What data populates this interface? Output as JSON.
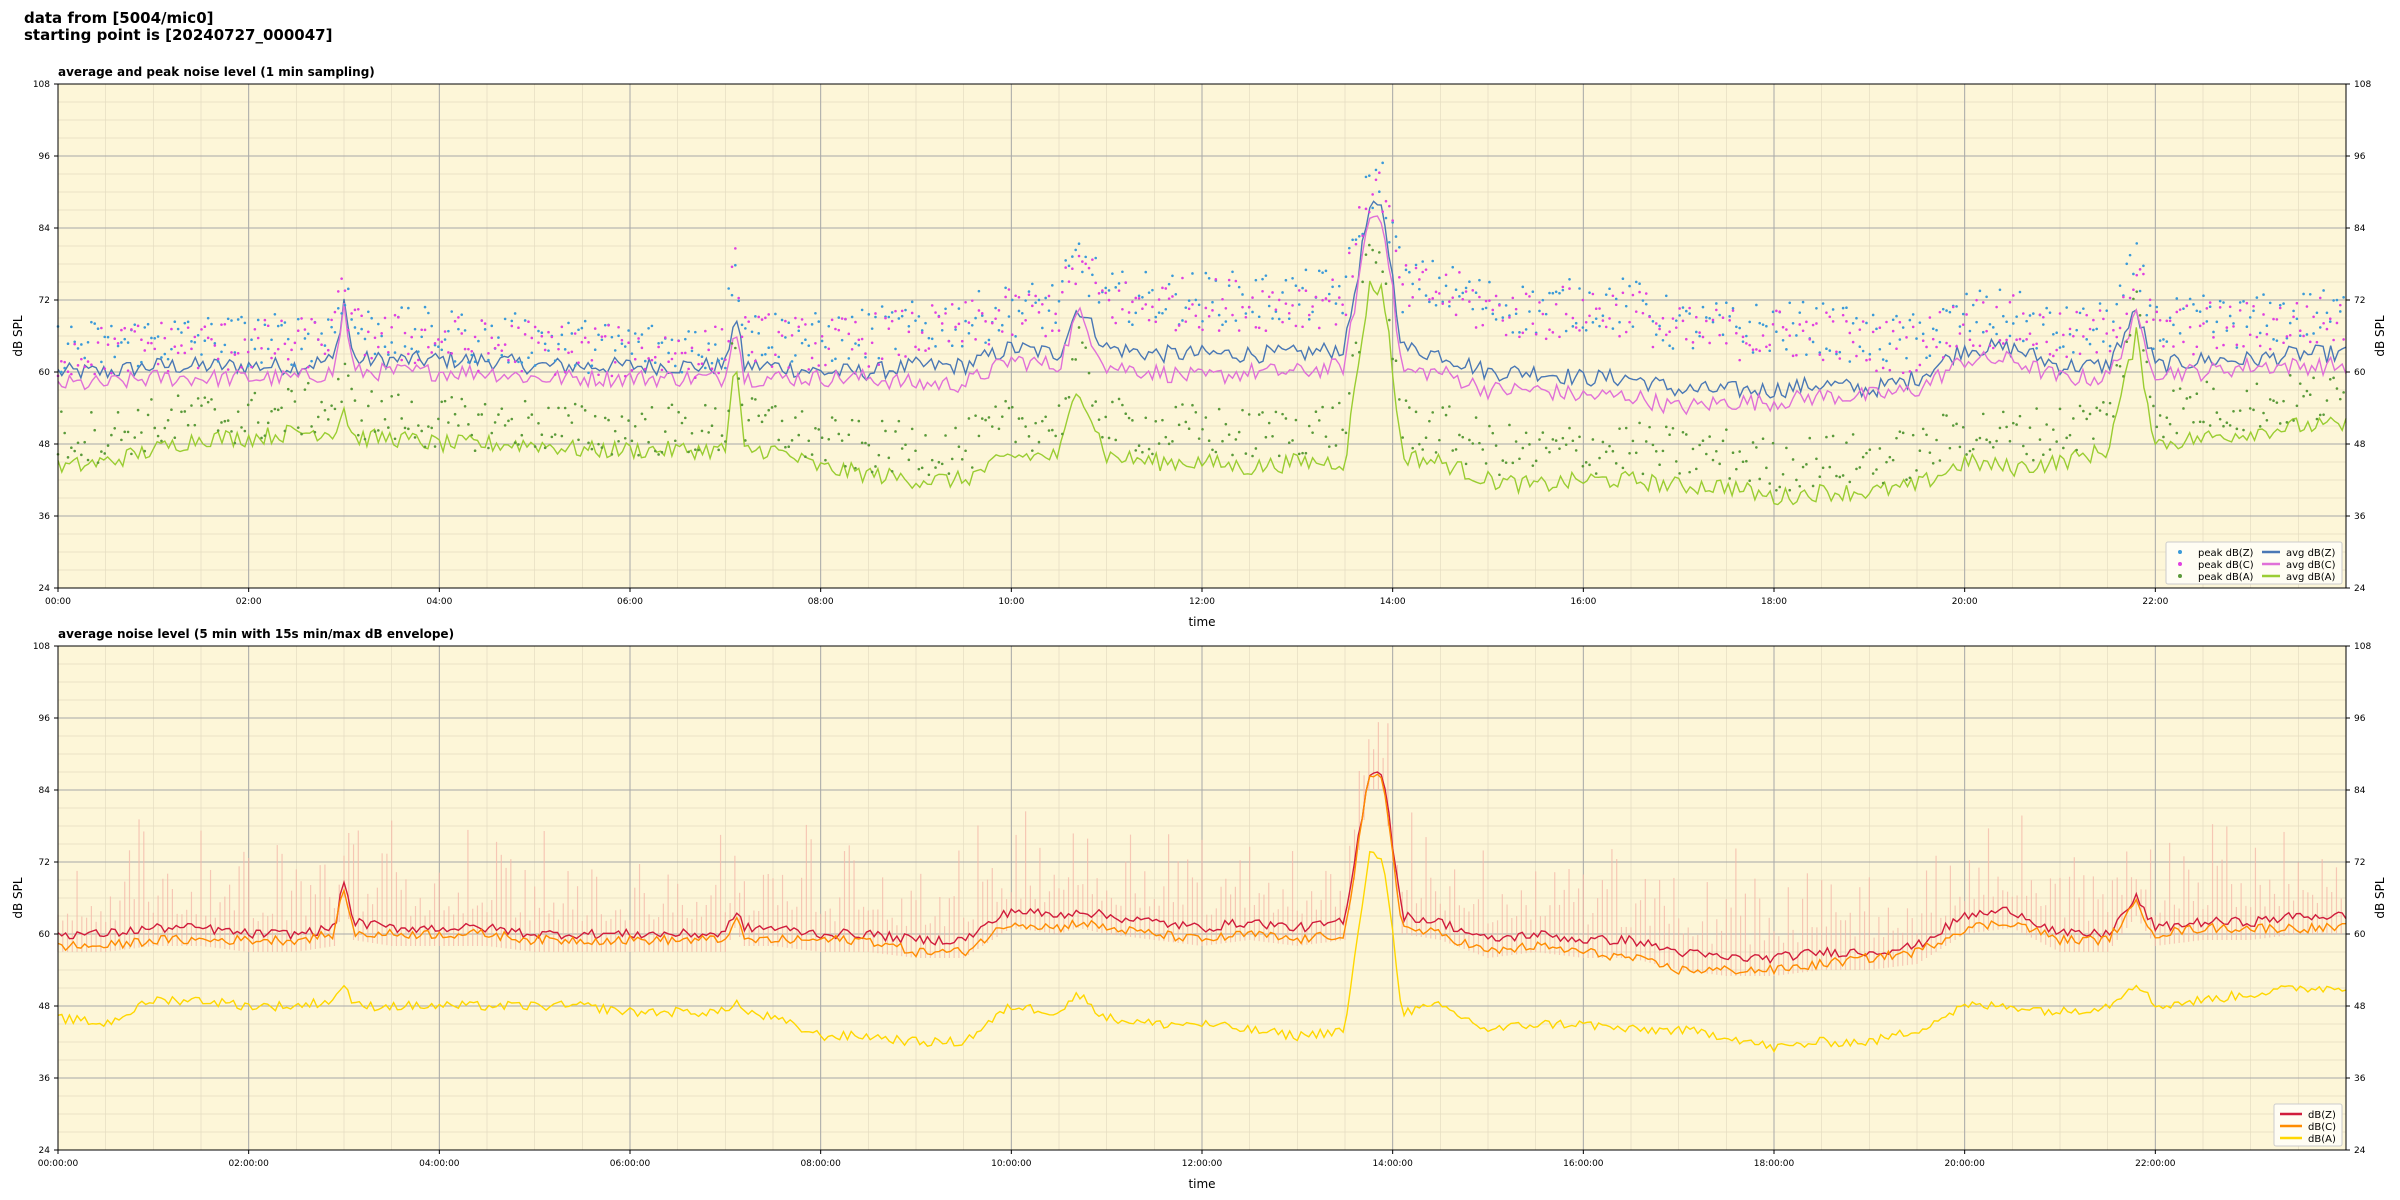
{
  "header": {
    "line1": "data from [5004/mic0]",
    "line2": "starting point is [20240727_000047]"
  },
  "colors": {
    "background": "#fdf6d8",
    "grid_major": "#a8a8a8",
    "grid_minor": "#e4dcc0",
    "avg_z": "#4a78b5",
    "avg_c": "#e070d8",
    "avg_a": "#9acd32",
    "peak_z": "#3a9ad9",
    "peak_c": "#e040e0",
    "peak_a": "#5a9a3a",
    "env_z": "#d01c3c",
    "env_c": "#ff8c00",
    "env_a": "#ffd700",
    "envelope_fill": "#f4b8a8"
  },
  "chart_data": [
    {
      "type": "line",
      "title": "average and peak noise level (1 min sampling)",
      "xlabel": "time",
      "ylabel": "dB SPL",
      "xlim": [
        0,
        24
      ],
      "ylim": [
        24,
        108
      ],
      "xticks": [
        "00:00",
        "02:00",
        "04:00",
        "06:00",
        "08:00",
        "10:00",
        "12:00",
        "14:00",
        "16:00",
        "18:00",
        "20:00",
        "22:00"
      ],
      "yticks": [
        "24",
        "36",
        "48",
        "60",
        "72",
        "84",
        "96",
        "108"
      ],
      "grid": true,
      "legend_position": "bottom-right",
      "legend": [
        {
          "label": "peak dB(Z)",
          "kind": "point",
          "color_key": "peak_z"
        },
        {
          "label": "peak dB(C)",
          "kind": "point",
          "color_key": "peak_c"
        },
        {
          "label": "peak dB(A)",
          "kind": "point",
          "color_key": "peak_a"
        },
        {
          "label": "avg dB(Z)",
          "kind": "line",
          "color_key": "avg_z"
        },
        {
          "label": "avg dB(C)",
          "kind": "line",
          "color_key": "avg_c"
        },
        {
          "label": "avg dB(A)",
          "kind": "line",
          "color_key": "avg_a"
        }
      ],
      "x": [
        0,
        0.5,
        1,
        1.5,
        2,
        2.5,
        2.9,
        3.0,
        3.1,
        3.5,
        4,
        4.5,
        5,
        5.5,
        6,
        6.5,
        7,
        7.1,
        7.2,
        7.5,
        8,
        8.5,
        9,
        9.5,
        10,
        10.5,
        10.7,
        11,
        11.5,
        12,
        12.5,
        13,
        13.5,
        13.75,
        13.9,
        14.1,
        14.5,
        15,
        15.5,
        16,
        16.5,
        17,
        17.5,
        18,
        18.5,
        19,
        19.5,
        20,
        20.5,
        21,
        21.5,
        21.8,
        22,
        22.5,
        23,
        23.5,
        24
      ],
      "series": [
        {
          "name": "avg dB(Z)",
          "values": [
            60,
            60,
            61,
            61,
            61,
            61,
            62,
            72,
            62,
            62,
            62,
            62,
            61,
            61,
            61,
            61,
            61,
            70,
            61,
            61,
            60,
            60,
            61,
            61,
            64,
            63,
            71,
            64,
            63,
            63,
            63,
            63,
            64,
            87,
            87,
            64,
            63,
            60,
            60,
            59,
            59,
            57,
            57,
            57,
            58,
            57,
            59,
            64,
            64,
            61,
            61,
            70,
            61,
            62,
            62,
            63,
            63
          ]
        },
        {
          "name": "avg dB(C)",
          "values": [
            58,
            58,
            59,
            59,
            59,
            59,
            60,
            71,
            60,
            60,
            60,
            60,
            59,
            59,
            59,
            59,
            59,
            69,
            59,
            59,
            59,
            59,
            58,
            58,
            62,
            61,
            70,
            61,
            60,
            59,
            60,
            60,
            61,
            86,
            86,
            60,
            60,
            57,
            57,
            56,
            56,
            54,
            55,
            55,
            56,
            56,
            57,
            62,
            62,
            59,
            59,
            69,
            60,
            60,
            61,
            61,
            61
          ]
        },
        {
          "name": "avg dB(A)",
          "values": [
            44,
            45,
            47,
            49,
            49,
            50,
            50,
            54,
            49,
            49,
            48,
            48,
            48,
            47,
            47,
            47,
            47,
            62,
            47,
            47,
            44,
            43,
            42,
            42,
            46,
            46,
            58,
            46,
            45,
            45,
            44,
            45,
            45,
            74,
            74,
            46,
            45,
            42,
            41,
            42,
            42,
            41,
            41,
            39,
            40,
            40,
            41,
            45,
            44,
            45,
            47,
            66,
            48,
            49,
            50,
            51,
            51
          ]
        },
        {
          "name": "peak dB(Z)",
          "values": [
            63,
            63,
            64,
            64,
            64,
            64,
            66,
            74,
            66,
            65,
            65,
            64,
            64,
            63,
            63,
            63,
            63,
            80,
            65,
            65,
            64,
            65,
            66,
            67,
            69,
            70,
            78,
            71,
            71,
            71,
            71,
            71,
            72,
            90,
            90,
            73,
            73,
            70,
            69,
            70,
            70,
            66,
            66,
            66,
            66,
            64,
            64,
            68,
            68,
            65,
            66,
            76,
            66,
            67,
            67,
            68,
            68
          ]
        },
        {
          "name": "peak dB(C)",
          "values": [
            62,
            62,
            63,
            63,
            63,
            63,
            65,
            73,
            65,
            64,
            64,
            63,
            63,
            62,
            62,
            62,
            62,
            79,
            64,
            64,
            63,
            64,
            65,
            66,
            68,
            69,
            77,
            70,
            70,
            70,
            70,
            70,
            71,
            89,
            89,
            72,
            72,
            69,
            68,
            69,
            69,
            65,
            65,
            65,
            65,
            63,
            63,
            67,
            67,
            64,
            65,
            75,
            65,
            66,
            66,
            67,
            67
          ]
        },
        {
          "name": "peak dB(A)",
          "values": [
            48,
            48,
            50,
            51,
            51,
            52,
            53,
            57,
            52,
            51,
            50,
            50,
            50,
            49,
            49,
            49,
            49,
            66,
            50,
            50,
            47,
            46,
            46,
            46,
            50,
            50,
            62,
            50,
            49,
            49,
            48,
            49,
            50,
            77,
            77,
            50,
            49,
            46,
            45,
            46,
            46,
            45,
            45,
            43,
            44,
            44,
            45,
            49,
            48,
            49,
            51,
            70,
            52,
            53,
            53,
            54,
            54
          ]
        }
      ]
    },
    {
      "type": "line",
      "title": "average noise level (5 min with 15s min/max dB envelope)",
      "xlabel": "time",
      "ylabel": "dB SPL",
      "xlim": [
        0,
        24
      ],
      "ylim": [
        24,
        108
      ],
      "xticks": [
        "00:00:00",
        "02:00:00",
        "04:00:00",
        "06:00:00",
        "08:00:00",
        "10:00:00",
        "12:00:00",
        "14:00:00",
        "16:00:00",
        "18:00:00",
        "20:00:00",
        "22:00:00"
      ],
      "yticks": [
        "24",
        "36",
        "48",
        "60",
        "72",
        "84",
        "96",
        "108"
      ],
      "grid": true,
      "legend_position": "bottom-right",
      "legend": [
        {
          "label": "dB(Z)",
          "kind": "line",
          "color_key": "env_z"
        },
        {
          "label": "dB(C)",
          "kind": "line",
          "color_key": "env_c"
        },
        {
          "label": "dB(A)",
          "kind": "line",
          "color_key": "env_a"
        }
      ],
      "x": [
        0,
        0.5,
        1,
        1.5,
        2,
        2.5,
        2.9,
        3.0,
        3.1,
        3.5,
        4,
        4.5,
        5,
        5.5,
        6,
        6.5,
        7,
        7.1,
        7.2,
        7.5,
        8,
        8.5,
        9,
        9.5,
        10,
        10.5,
        10.7,
        11,
        11.5,
        12,
        12.5,
        13,
        13.5,
        13.75,
        13.9,
        14.1,
        14.5,
        15,
        15.5,
        16,
        16.5,
        17,
        17.5,
        18,
        18.5,
        19,
        19.5,
        20,
        20.5,
        21,
        21.5,
        21.8,
        22,
        22.5,
        23,
        23.5,
        24
      ],
      "series": [
        {
          "name": "dB(Z)",
          "values": [
            60,
            60,
            61,
            61,
            60,
            60,
            61,
            69,
            62,
            61,
            61,
            61,
            60,
            60,
            60,
            60,
            60,
            64,
            61,
            61,
            60,
            60,
            59,
            59,
            64,
            63,
            64,
            63,
            62,
            61,
            62,
            61,
            62,
            87,
            87,
            63,
            62,
            59,
            60,
            59,
            59,
            57,
            56,
            56,
            57,
            57,
            58,
            63,
            64,
            60,
            60,
            66,
            61,
            62,
            62,
            63,
            63
          ]
        },
        {
          "name": "dB(C)",
          "values": [
            58,
            58,
            59,
            59,
            59,
            59,
            60,
            68,
            60,
            60,
            60,
            60,
            59,
            59,
            59,
            59,
            59,
            63,
            59,
            59,
            59,
            59,
            57,
            57,
            62,
            61,
            62,
            61,
            60,
            59,
            60,
            59,
            60,
            86,
            86,
            61,
            60,
            57,
            58,
            57,
            56,
            54,
            54,
            54,
            55,
            56,
            57,
            61,
            62,
            59,
            59,
            65,
            60,
            61,
            61,
            61,
            61
          ]
        },
        {
          "name": "dB(A)",
          "values": [
            46,
            45,
            49,
            49,
            48,
            48,
            49,
            52,
            48,
            48,
            48,
            48,
            48,
            48,
            47,
            47,
            47,
            49,
            47,
            46,
            43,
            43,
            42,
            42,
            48,
            47,
            50,
            46,
            45,
            45,
            44,
            43,
            44,
            73,
            73,
            47,
            48,
            44,
            45,
            45,
            44,
            44,
            43,
            41,
            42,
            42,
            44,
            48,
            48,
            47,
            48,
            52,
            48,
            49,
            50,
            51,
            51
          ]
        }
      ]
    }
  ]
}
